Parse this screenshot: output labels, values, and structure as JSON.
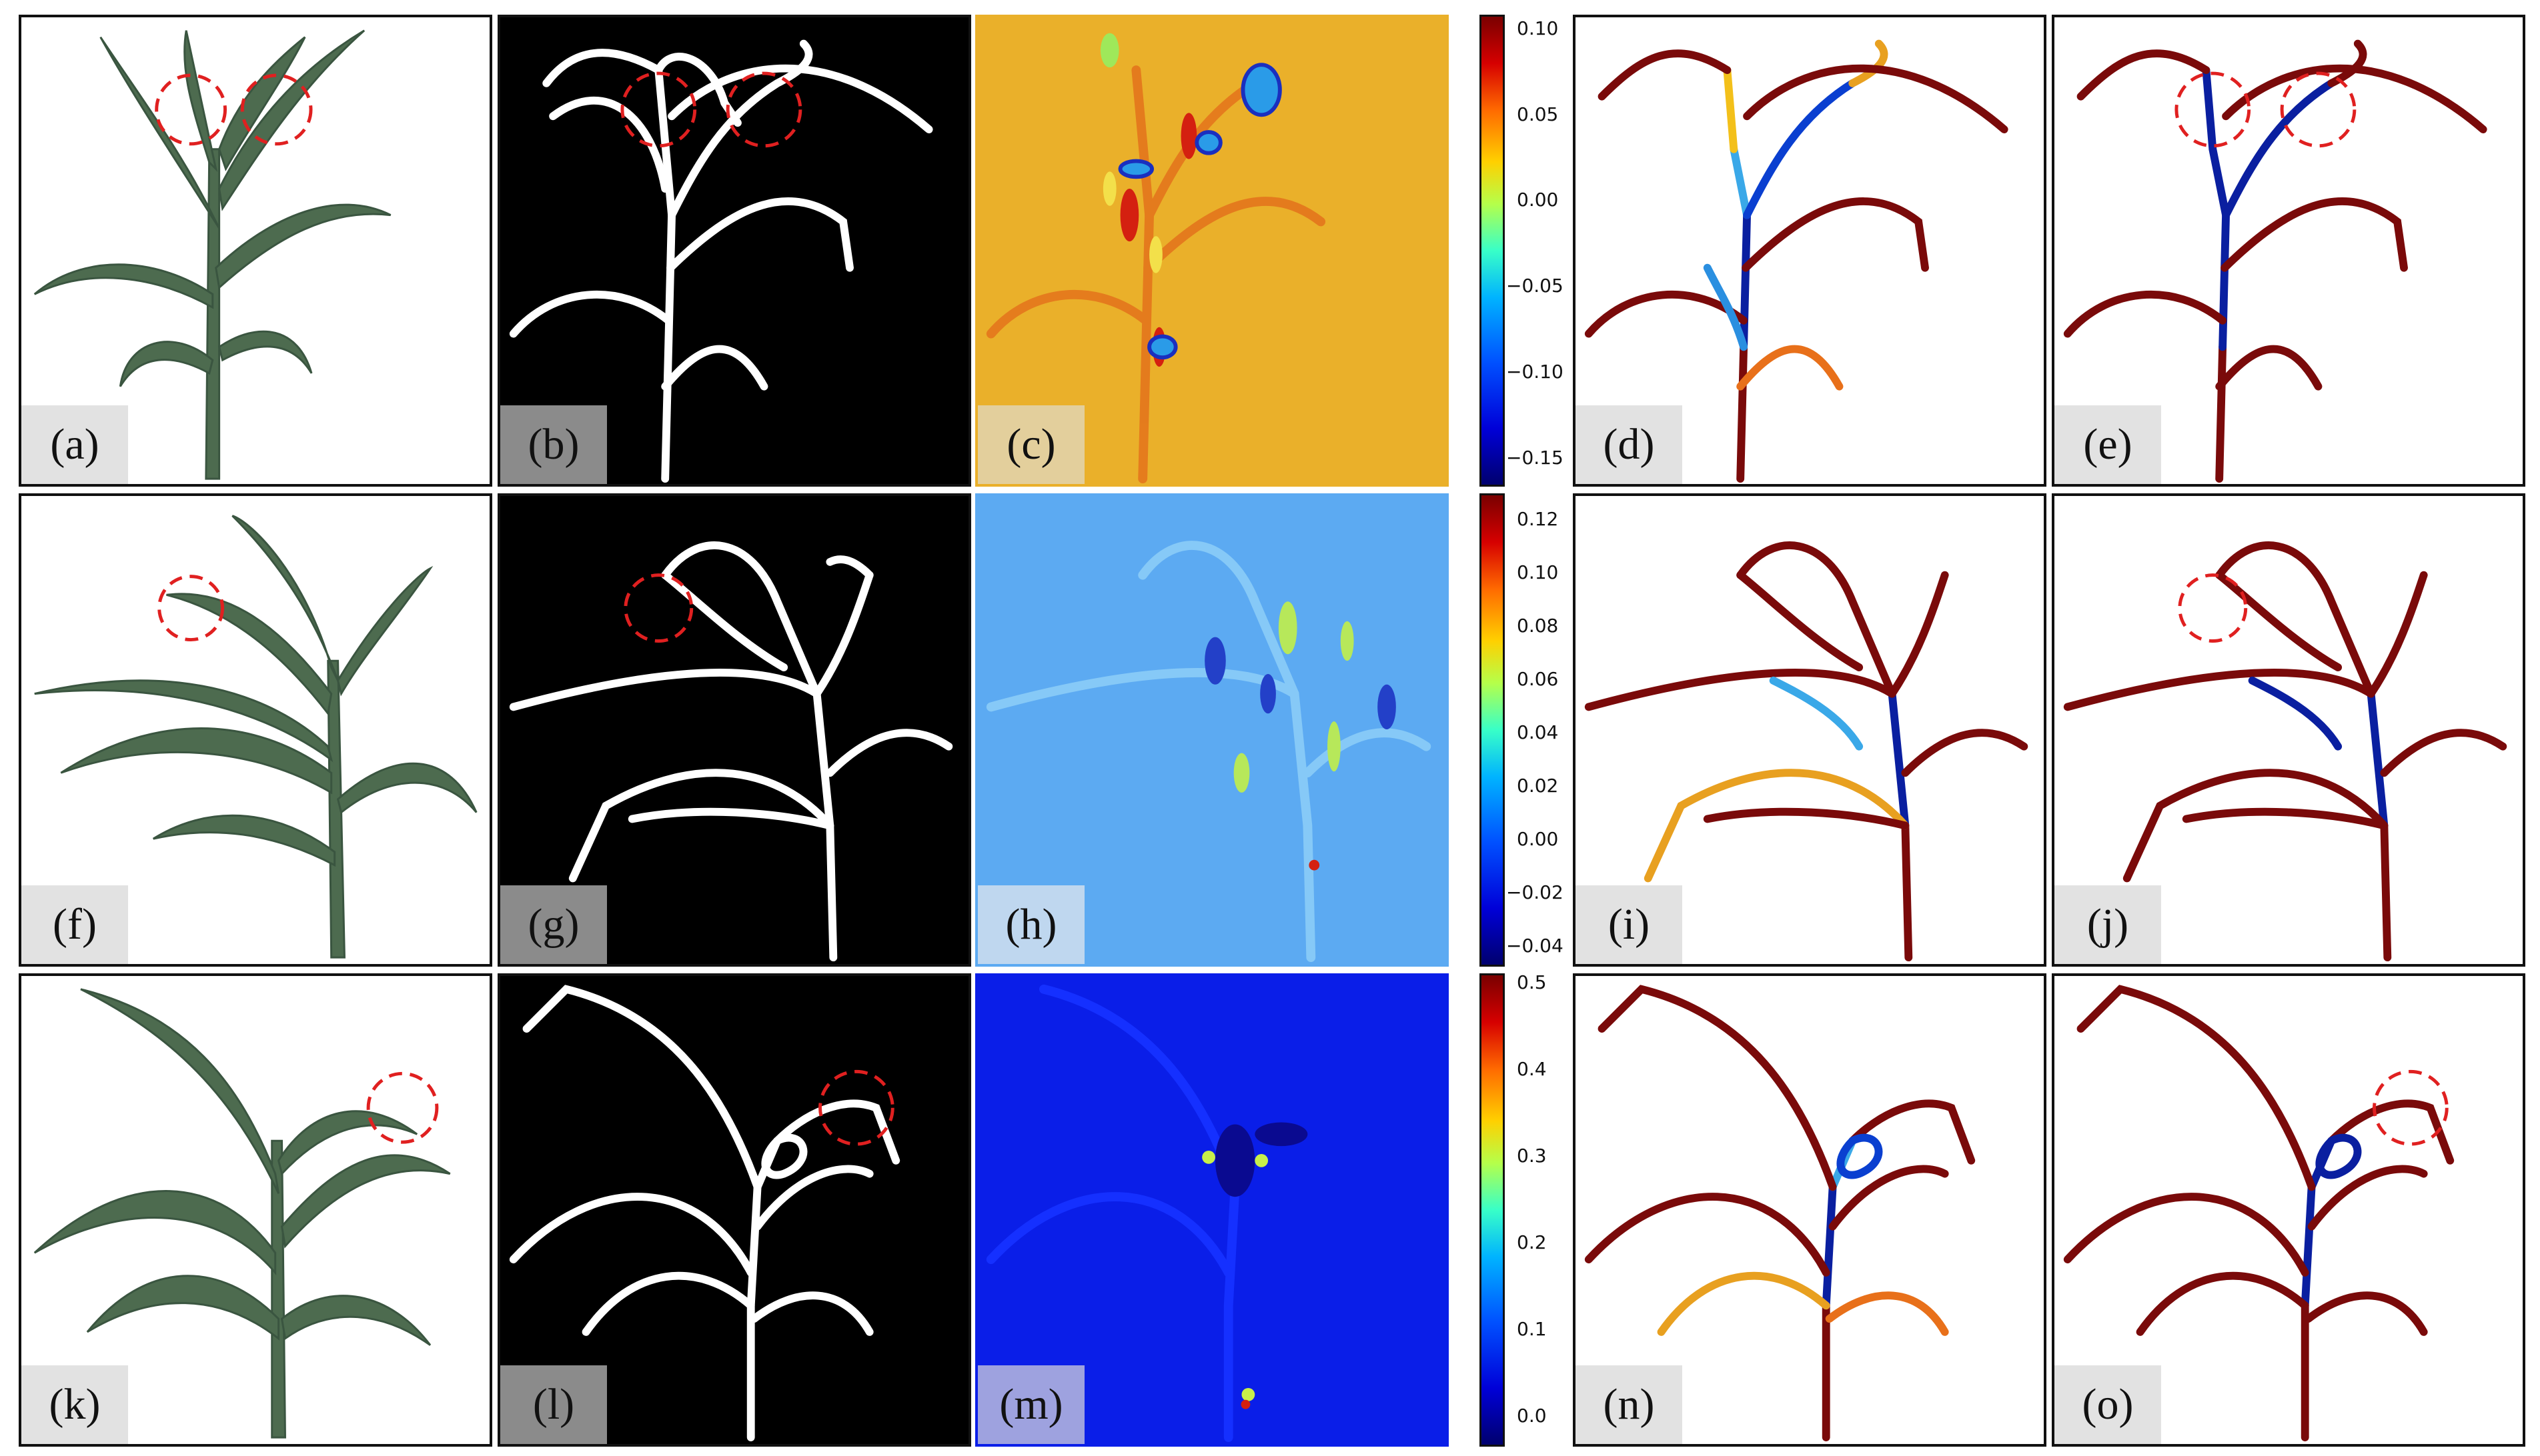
{
  "figure": {
    "rows": [
      {
        "labels": [
          "(a)",
          "(b)",
          "(c)",
          "(d)",
          "(e)"
        ],
        "colorbar_ticks": [
          "0.10",
          "0.05",
          "0.00",
          "−0.05",
          "−0.10",
          "−0.15"
        ],
        "colorbar_range": [
          -0.165,
          0.11
        ]
      },
      {
        "labels": [
          "(f)",
          "(g)",
          "(h)",
          "(i)",
          "(j)"
        ],
        "colorbar_ticks": [
          "0.12",
          "0.10",
          "0.08",
          "0.06",
          "0.04",
          "0.02",
          "0.00",
          "−0.02",
          "−0.04"
        ],
        "colorbar_range": [
          -0.045,
          0.13
        ]
      },
      {
        "labels": [
          "(k)",
          "(l)",
          "(m)",
          "(n)",
          "(o)"
        ],
        "colorbar_ticks": [
          "0.5",
          "0.4",
          "0.3",
          "0.2",
          "0.1",
          "0.0"
        ],
        "colorbar_range": [
          -0.03,
          0.51
        ]
      }
    ],
    "colormap": "jet",
    "colors": {
      "leaf": "#4d6b4f",
      "leaf_light": "#7a9a74",
      "skeleton": "#ffffff",
      "skeleton_bg": "#000000",
      "circle": "#e02020",
      "curve_main": "#7a0a0a",
      "curve_low": "#0a1fa0"
    }
  }
}
